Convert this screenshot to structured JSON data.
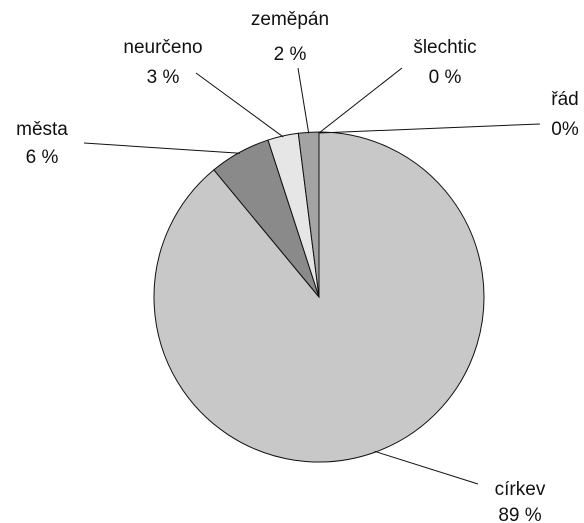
{
  "chart_data": {
    "type": "pie",
    "categories": [
      "církev",
      "města",
      "neurčeno",
      "zeměpán",
      "šlechtic",
      "řád"
    ],
    "values": [
      89,
      6,
      3,
      2,
      0,
      0
    ],
    "value_labels": [
      "89 %",
      "6 %",
      "3 %",
      "2 %",
      "0 %",
      "0%"
    ],
    "colors": [
      "#c8c8c8",
      "#8a8a8a",
      "#e6e6e6",
      "#a3a3a3",
      "#a3a3a3",
      "#a3a3a3"
    ]
  }
}
